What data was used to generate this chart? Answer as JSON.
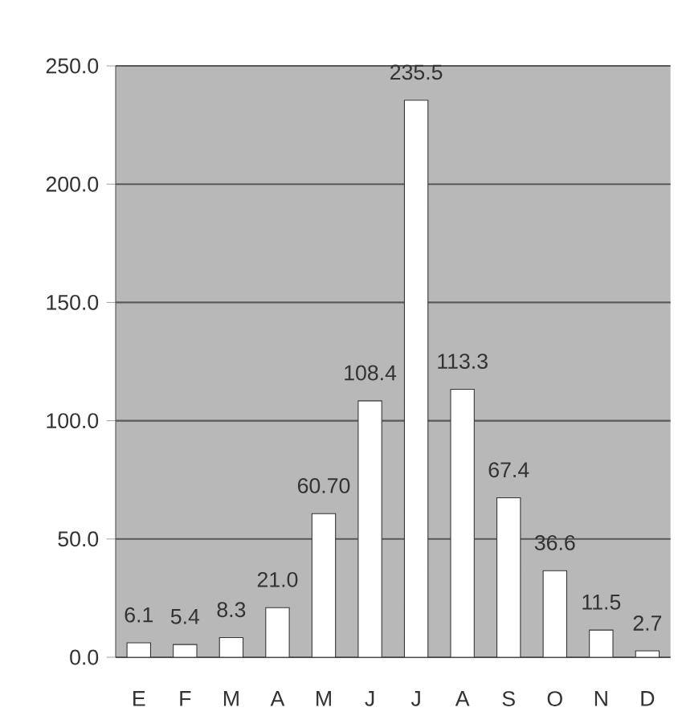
{
  "chart_data": {
    "type": "bar",
    "categories": [
      "E",
      "F",
      "M",
      "A",
      "M",
      "J",
      "J",
      "A",
      "S",
      "O",
      "N",
      "D"
    ],
    "values": [
      6.1,
      5.4,
      8.3,
      21.0,
      60.7,
      108.4,
      235.5,
      113.3,
      67.4,
      36.6,
      11.5,
      2.7
    ],
    "value_labels": [
      "6.1",
      "5.4",
      "8.3",
      "21.0",
      "60.70",
      "108.4",
      "235.5",
      "113.3",
      "67.4",
      "36.6",
      "11.5",
      "2.7"
    ],
    "color": "#ffffff",
    "ylim": [
      0,
      250
    ],
    "yticks": [
      {
        "value": 0,
        "label": "0.0"
      },
      {
        "value": 50,
        "label": "50.0"
      },
      {
        "value": 100,
        "label": "100.0"
      },
      {
        "value": 150,
        "label": "150.0"
      },
      {
        "value": 200,
        "label": "200.0"
      },
      {
        "value": 250,
        "label": "250.0"
      }
    ],
    "grid": "y"
  }
}
